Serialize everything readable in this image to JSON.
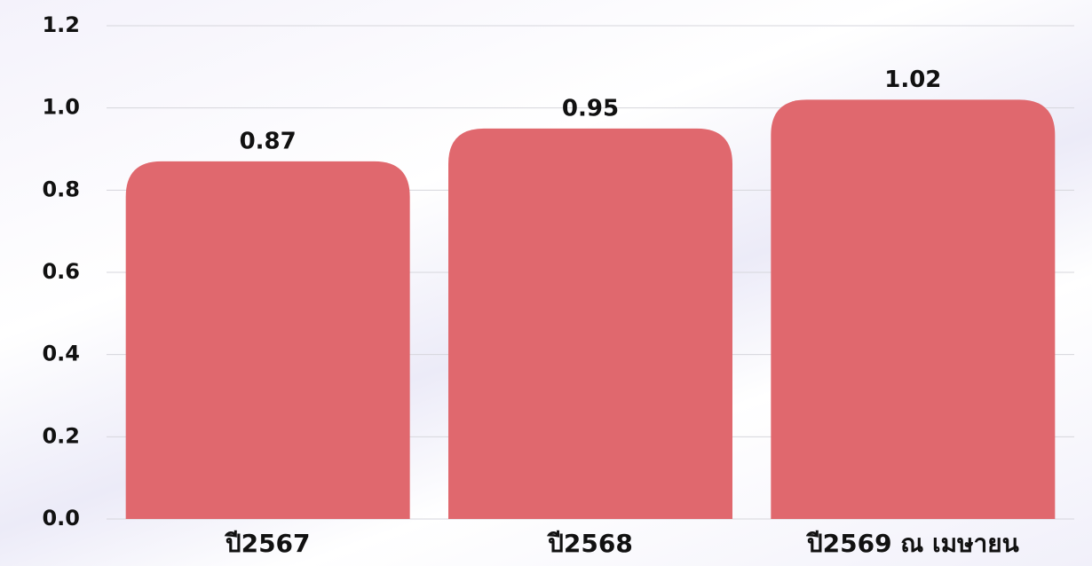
{
  "chart_data": {
    "type": "bar",
    "categories": [
      "ปี2567",
      "ปี2568",
      "ปี2569 ณ เมษายน"
    ],
    "values": [
      0.87,
      0.95,
      1.02
    ],
    "color": "#e0686e",
    "ylim": [
      0,
      1.2
    ],
    "yticks": [
      {
        "value": 0,
        "label": "0.0"
      },
      0.2,
      0.4,
      0.6,
      0.8,
      {
        "value": 1,
        "label": "1.0"
      },
      1.2
    ],
    "grid": true
  }
}
